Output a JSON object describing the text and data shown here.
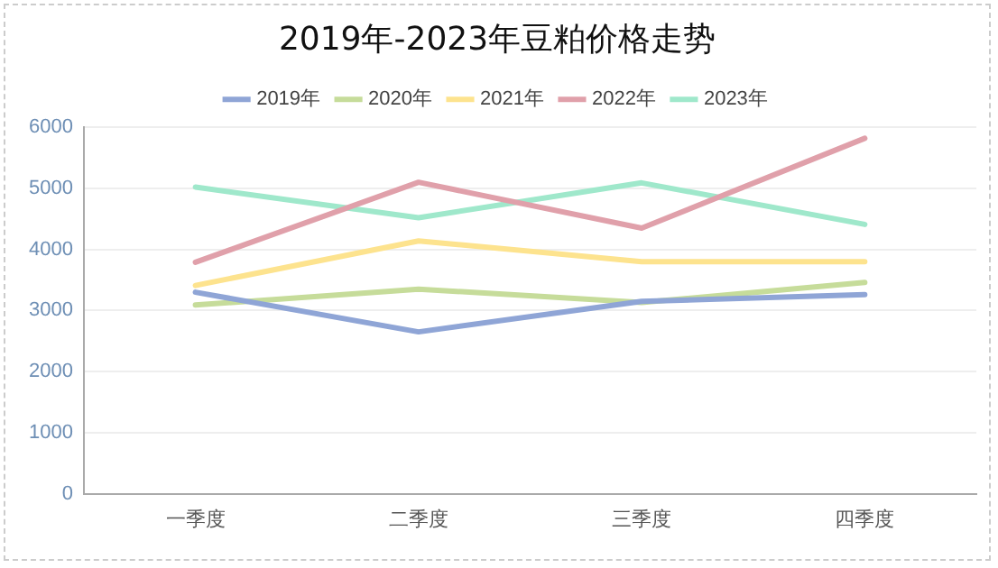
{
  "chart_data": {
    "type": "line",
    "title": "2019年-2023年豆粕价格走势",
    "categories": [
      "一季度",
      "二季度",
      "三季度",
      "四季度"
    ],
    "series": [
      {
        "name": "2019年",
        "color": "#8fa5d6",
        "values": [
          3300,
          2650,
          3150,
          3260
        ]
      },
      {
        "name": "2020年",
        "color": "#c6dc9a",
        "values": [
          3090,
          3350,
          3130,
          3460
        ]
      },
      {
        "name": "2021年",
        "color": "#fde38e",
        "values": [
          3410,
          4140,
          3800,
          3800
        ]
      },
      {
        "name": "2022年",
        "color": "#e0a0aa",
        "values": [
          3790,
          5100,
          4350,
          5820
        ]
      },
      {
        "name": "2023年",
        "color": "#9fe8cb",
        "values": [
          5020,
          4520,
          5090,
          4410
        ]
      }
    ],
    "ylim": [
      0,
      6000
    ],
    "yticks": [
      0,
      1000,
      2000,
      3000,
      4000,
      5000,
      6000
    ],
    "grid": "y",
    "legend": "top",
    "marker": "none",
    "line_style": "solid"
  }
}
